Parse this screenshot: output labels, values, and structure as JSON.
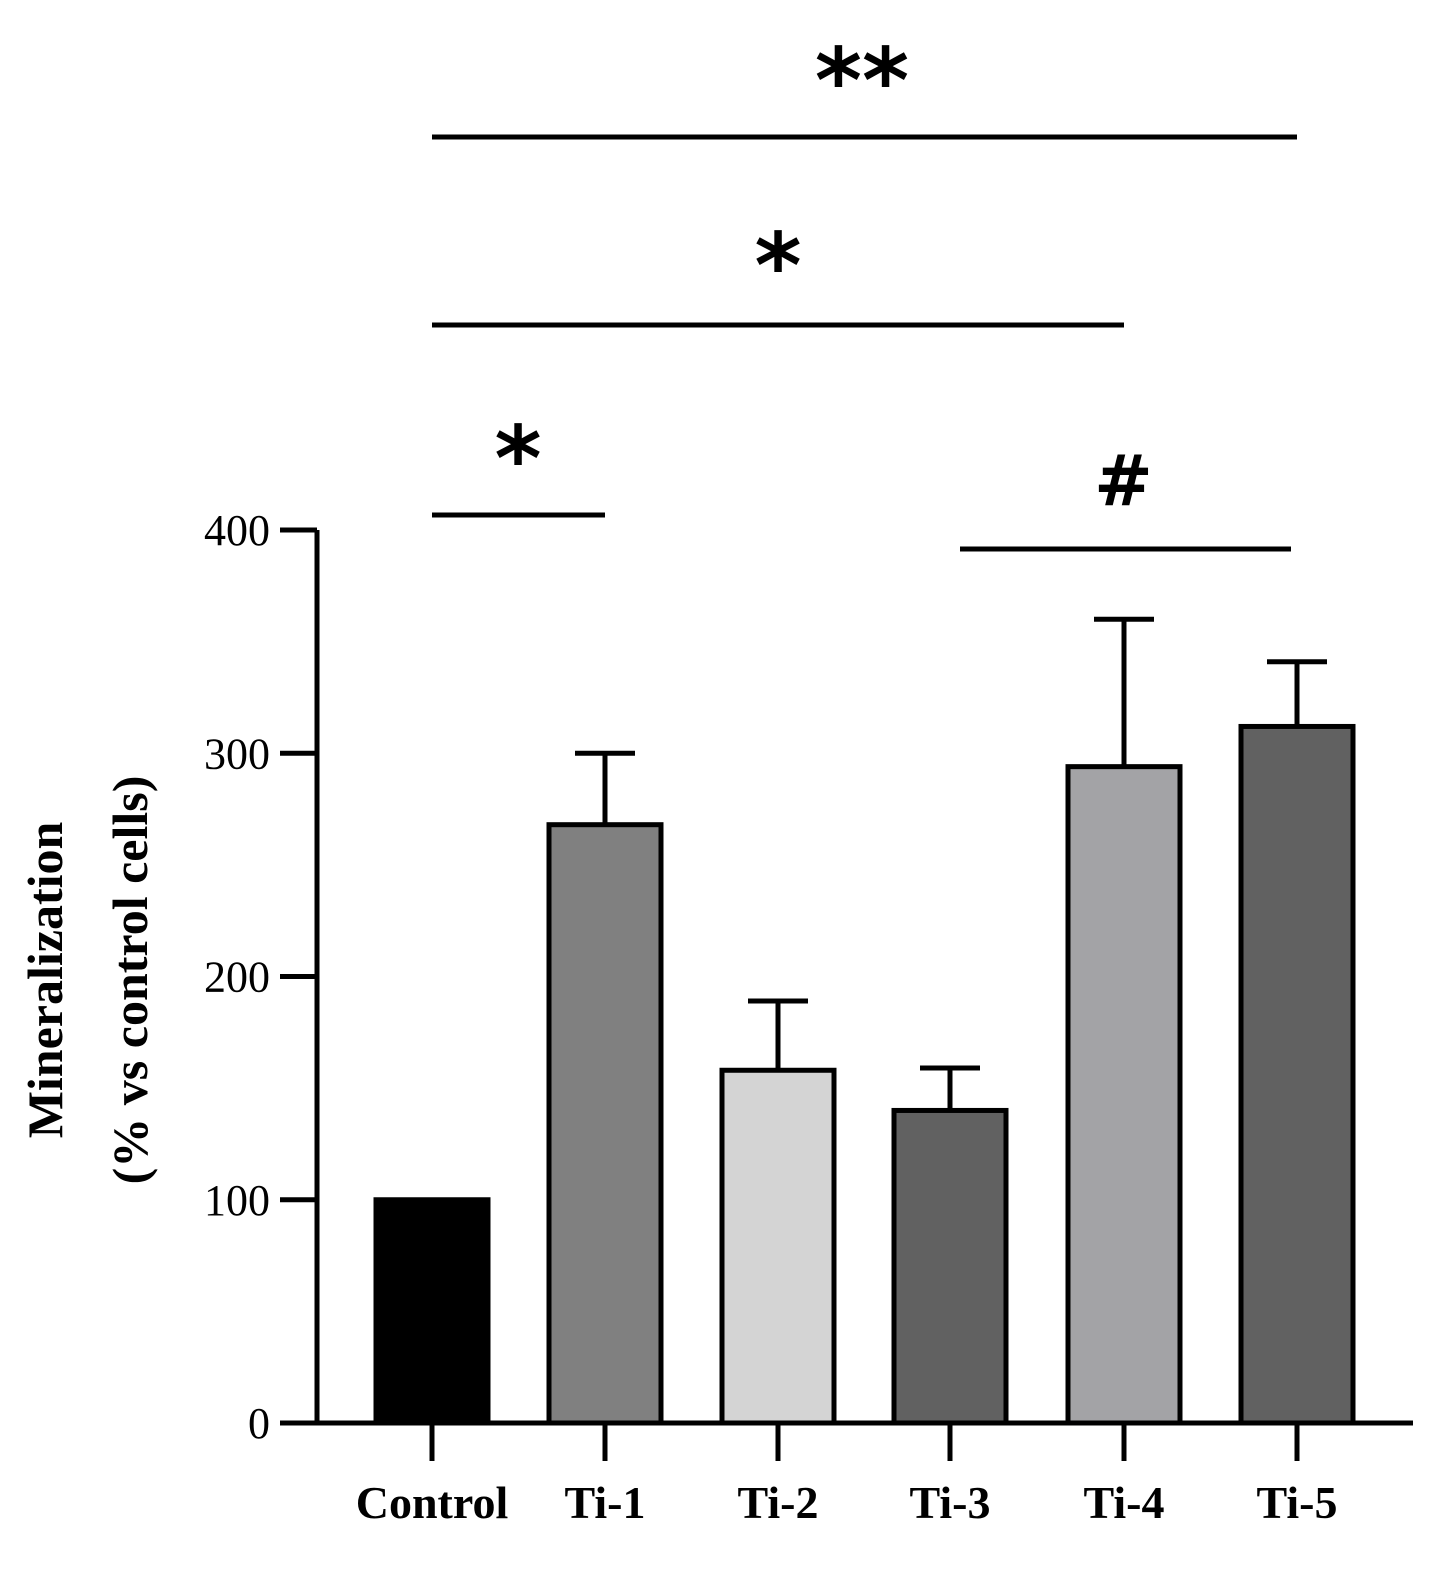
{
  "chart_data": {
    "type": "bar",
    "title": "",
    "xlabel": "",
    "ylabel": "Mineralization",
    "ylabel_line2": "(% vs control cells)",
    "ylim": [
      0,
      400
    ],
    "yticks": [
      0,
      100,
      200,
      300,
      400
    ],
    "categories": [
      "Control",
      "Ti-1",
      "Ti-2",
      "Ti-3",
      "Ti-4",
      "Ti-5"
    ],
    "values": [
      100,
      268,
      158,
      140,
      294,
      312
    ],
    "error_upper": [
      0,
      32,
      31,
      19,
      66,
      29
    ],
    "bar_colors": [
      "#000000",
      "#808080",
      "#d4d4d4",
      "#616161",
      "#a3a3a6",
      "#616161"
    ],
    "grid": false,
    "legend": "none",
    "significance": [
      {
        "from": "Control",
        "to": "Ti-5",
        "label": "**",
        "level": 3
      },
      {
        "from": "Control",
        "to": "Ti-4",
        "label": "*",
        "level": 2
      },
      {
        "from": "Control",
        "to": "Ti-1",
        "label": "*",
        "level": 1
      },
      {
        "from": "Ti-3",
        "to": "Ti-5",
        "label": "#",
        "level": 0
      }
    ]
  }
}
